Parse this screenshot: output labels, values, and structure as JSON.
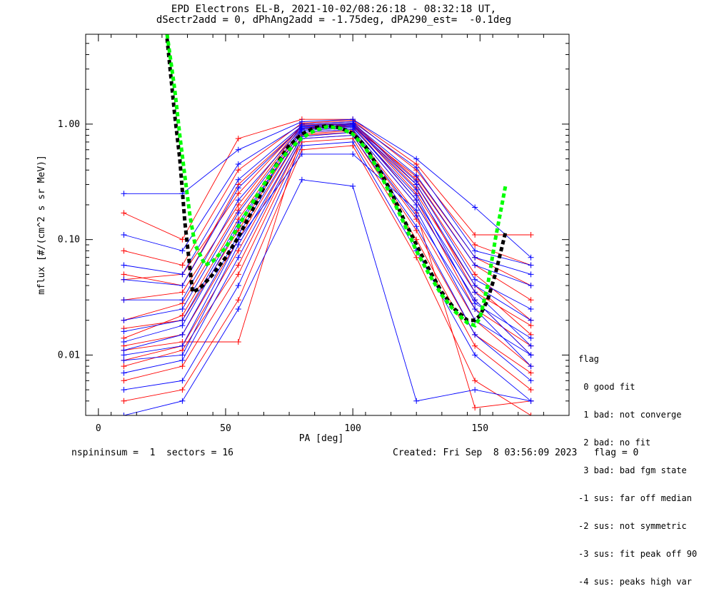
{
  "chart_data": {
    "type": "line",
    "title": "EPD Electrons EL-B, 2021-10-02/08:26:18 - 08:32:18 UT,",
    "subtitle": "dSectr2add = 0, dPhAng2add = -1.75deg, dPA290_est=  -0.1deg",
    "xlabel": "PA [deg]",
    "ylabel": "mflux [#/(cm^2 s sr MeV)]",
    "xlim": [
      -5,
      185
    ],
    "ylim": [
      0.003,
      6.0
    ],
    "yscale": "log",
    "x_ticks": [
      {
        "value": 0,
        "label": "0"
      },
      {
        "value": 50,
        "label": "50"
      },
      {
        "value": 100,
        "label": "100"
      },
      {
        "value": 150,
        "label": "150"
      }
    ],
    "y_ticks": [
      {
        "value": 0.01,
        "label": "0.01"
      },
      {
        "value": 0.1,
        "label": "0.10"
      },
      {
        "value": 1.0,
        "label": "1.00"
      }
    ],
    "colors": {
      "red": "#ff0000",
      "blue": "#0000ff",
      "black": "#000000",
      "green": "#00ff00"
    },
    "pa_bins": [
      10,
      33,
      55,
      80,
      100,
      125,
      148,
      170
    ],
    "series": [
      {
        "color": "red",
        "values": [
          0.012,
          0.015,
          0.1,
          0.85,
          0.9,
          0.2,
          0.03,
          0.01
        ]
      },
      {
        "color": "red",
        "values": [
          0.017,
          0.02,
          0.12,
          0.9,
          1.0,
          0.25,
          0.04,
          0.015
        ]
      },
      {
        "color": "red",
        "values": [
          0.009,
          0.012,
          0.08,
          0.8,
          0.85,
          0.15,
          0.02,
          0.008
        ]
      },
      {
        "color": "red",
        "values": [
          0.03,
          0.035,
          0.2,
          1.0,
          1.05,
          0.3,
          0.05,
          0.02
        ]
      },
      {
        "color": "red",
        "values": [
          0.006,
          0.008,
          0.05,
          0.7,
          0.75,
          0.1,
          0.012,
          0.005
        ]
      },
      {
        "color": "red",
        "values": [
          0.17,
          0.1,
          0.75,
          1.1,
          1.1,
          0.45,
          0.11,
          0.11
        ]
      },
      {
        "color": "red",
        "values": [
          0.05,
          0.04,
          0.3,
          0.95,
          0.95,
          0.35,
          0.07,
          0.04
        ]
      },
      {
        "color": "red",
        "values": [
          0.004,
          0.005,
          0.03,
          0.6,
          0.65,
          0.07,
          0.006,
          0.003
        ]
      },
      {
        "color": "red",
        "values": [
          0.014,
          0.022,
          0.15,
          0.92,
          0.98,
          0.22,
          0.025,
          0.012
        ]
      },
      {
        "color": "red",
        "values": [
          0.08,
          0.06,
          0.4,
          1.02,
          1.08,
          0.4,
          0.09,
          0.06
        ]
      },
      {
        "color": "red",
        "values": [
          0.008,
          0.011,
          0.06,
          0.75,
          0.8,
          0.12,
          0.015,
          0.007
        ]
      },
      {
        "color": "red",
        "values": [
          0.02,
          0.028,
          0.18,
          0.97,
          1.0,
          0.28,
          0.035,
          0.018
        ]
      },
      {
        "color": "red",
        "values": [
          0.011,
          0.013,
          0.013,
          0.82,
          0.88,
          0.17,
          0.0035,
          0.004
        ]
      },
      {
        "color": "red",
        "values": [
          0.045,
          0.05,
          0.25,
          0.98,
          1.02,
          0.33,
          0.06,
          0.03
        ]
      },
      {
        "color": "blue",
        "values": [
          0.011,
          0.015,
          0.11,
          0.85,
          0.9,
          0.2,
          0.03,
          0.01
        ]
      },
      {
        "color": "blue",
        "values": [
          0.013,
          0.018,
          0.13,
          0.9,
          0.95,
          0.22,
          0.035,
          0.012
        ]
      },
      {
        "color": "blue",
        "values": [
          0.009,
          0.01,
          0.09,
          0.78,
          0.85,
          0.16,
          0.025,
          0.008
        ]
      },
      {
        "color": "blue",
        "values": [
          0.25,
          0.25,
          0.6,
          1.05,
          1.1,
          0.5,
          0.19,
          0.07
        ]
      },
      {
        "color": "blue",
        "values": [
          0.045,
          0.04,
          0.28,
          0.95,
          1.0,
          0.32,
          0.06,
          0.04
        ]
      },
      {
        "color": "blue",
        "values": [
          0.005,
          0.006,
          0.04,
          0.65,
          0.7,
          0.08,
          0.01,
          0.004
        ]
      },
      {
        "color": "blue",
        "values": [
          0.02,
          0.025,
          0.17,
          0.92,
          0.98,
          0.27,
          0.04,
          0.02
        ]
      },
      {
        "color": "blue",
        "values": [
          0.11,
          0.08,
          0.45,
          1.0,
          1.05,
          0.42,
          0.08,
          0.06
        ]
      },
      {
        "color": "blue",
        "values": [
          0.007,
          0.009,
          0.07,
          0.75,
          0.8,
          0.13,
          0.015,
          0.006
        ]
      },
      {
        "color": "blue",
        "values": [
          0.003,
          0.004,
          0.025,
          0.33,
          0.29,
          0.004,
          0.005,
          0.004
        ]
      },
      {
        "color": "blue",
        "values": [
          0.016,
          0.02,
          0.14,
          0.88,
          0.93,
          0.24,
          0.028,
          0.014
        ]
      },
      {
        "color": "blue",
        "values": [
          0.06,
          0.05,
          0.33,
          0.97,
          1.02,
          0.36,
          0.07,
          0.05
        ]
      },
      {
        "color": "blue",
        "values": [
          0.01,
          0.012,
          0.1,
          0.55,
          0.55,
          0.18,
          0.02,
          0.01
        ]
      },
      {
        "color": "blue",
        "values": [
          0.03,
          0.03,
          0.22,
          0.93,
          0.97,
          0.3,
          0.045,
          0.025
        ]
      }
    ],
    "fits": [
      {
        "color": "black",
        "style": "dashed",
        "x": [
          27,
          30,
          32,
          34,
          37,
          40,
          45,
          50,
          55,
          60,
          65,
          70,
          75,
          80,
          85,
          90,
          95,
          100,
          105,
          110,
          115,
          120,
          125,
          130,
          135,
          140,
          145,
          148,
          150,
          153,
          156,
          160
        ],
        "y": [
          5.5,
          1.2,
          0.5,
          0.14,
          0.035,
          0.038,
          0.05,
          0.07,
          0.105,
          0.17,
          0.28,
          0.45,
          0.65,
          0.82,
          0.93,
          0.97,
          0.93,
          0.83,
          0.64,
          0.42,
          0.26,
          0.15,
          0.09,
          0.055,
          0.035,
          0.025,
          0.02,
          0.02,
          0.022,
          0.03,
          0.05,
          0.115
        ]
      },
      {
        "color": "green",
        "style": "dashed",
        "x": [
          27,
          30,
          32,
          34,
          36,
          38,
          42,
          45,
          50,
          55,
          60,
          65,
          70,
          75,
          80,
          85,
          90,
          95,
          100,
          105,
          110,
          115,
          120,
          125,
          130,
          135,
          140,
          145,
          148,
          150,
          153,
          156,
          160
        ],
        "y": [
          6.0,
          2.0,
          0.8,
          0.35,
          0.16,
          0.09,
          0.06,
          0.065,
          0.085,
          0.13,
          0.2,
          0.3,
          0.44,
          0.6,
          0.76,
          0.88,
          0.95,
          0.92,
          0.82,
          0.62,
          0.4,
          0.24,
          0.14,
          0.08,
          0.05,
          0.033,
          0.024,
          0.019,
          0.018,
          0.021,
          0.04,
          0.1,
          0.29
        ]
      }
    ],
    "legend": {
      "placement": "right-bottom",
      "lines": [
        "flag",
        " 0 good fit",
        " 1 bad: not converge",
        " 2 bad: no fit",
        " 3 bad: bad fgm state",
        "-1 sus: far off median",
        "-2 sus: not symmetric",
        "-3 sus: fit peak off 90",
        "-4 sus: peaks high var"
      ]
    }
  },
  "footer": {
    "left": "nspininsum =  1  sectors = 16",
    "right": "Created: Fri Sep  8 03:56:09 2023   flag = 0"
  }
}
